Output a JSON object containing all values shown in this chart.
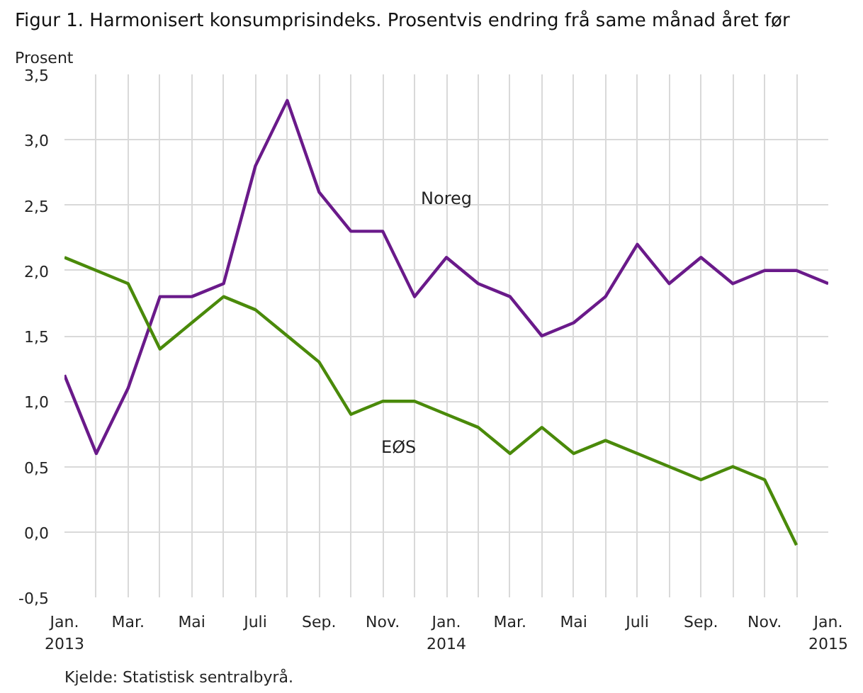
{
  "chart_data": {
    "type": "line",
    "title": "Figur 1. Harmonisert konsumprisindeks. Prosentvis endring frå same månad året før",
    "ylabel": "Prosent",
    "categories": [
      "Jan.\n2013",
      null,
      "Mar.",
      null,
      "Mai",
      null,
      "Juli",
      null,
      "Sep.",
      null,
      "Nov.",
      null,
      "Jan.\n2014",
      null,
      "Mar.",
      null,
      "Mai",
      null,
      "Juli",
      null,
      "Sep.",
      null,
      "Nov.",
      null,
      "Jan.\n2015"
    ],
    "series": [
      {
        "name": "Noreg",
        "color": "#6a1a8a",
        "values": [
          1.2,
          0.6,
          1.1,
          1.8,
          1.8,
          1.9,
          2.8,
          3.3,
          2.6,
          2.3,
          2.3,
          1.8,
          2.1,
          1.9,
          1.8,
          1.5,
          1.6,
          1.8,
          2.2,
          1.9,
          2.1,
          1.9,
          2.0,
          2.0,
          1.9
        ]
      },
      {
        "name": "EØS",
        "color": "#4a8a0a",
        "values": [
          2.1,
          2.0,
          1.9,
          1.4,
          1.6,
          1.8,
          1.7,
          1.5,
          1.3,
          0.9,
          1.0,
          1.0,
          0.9,
          0.8,
          0.6,
          0.8,
          0.6,
          0.7,
          0.6,
          0.5,
          0.4,
          0.5,
          0.4,
          -0.1,
          null
        ]
      }
    ],
    "ylim": [
      -0.5,
      3.5
    ],
    "yticks": [
      {
        "value": -0.5,
        "label": "-0,5"
      },
      {
        "value": 0.0,
        "label": "0,0"
      },
      {
        "value": 0.5,
        "label": "0,5"
      },
      {
        "value": 1.0,
        "label": "1,0"
      },
      {
        "value": 1.5,
        "label": "1,5"
      },
      {
        "value": 2.0,
        "label": "2,0"
      },
      {
        "value": 2.5,
        "label": "2,5"
      },
      {
        "value": 3.0,
        "label": "3,0"
      },
      {
        "value": 3.5,
        "label": "3,5"
      }
    ],
    "grid": true,
    "marker": "none",
    "line_style": "solid",
    "annotations": [
      "Kjelde: Statistisk sentralbyrå."
    ]
  }
}
